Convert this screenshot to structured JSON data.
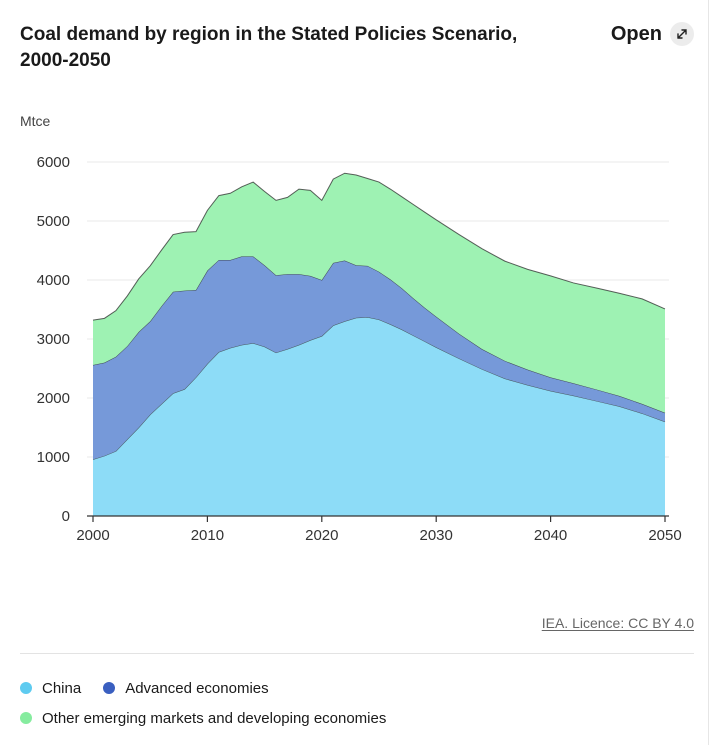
{
  "header": {
    "title": "Coal demand by region in the Stated Policies Scenario, 2000-2050",
    "open_label": "Open"
  },
  "source": {
    "label": "IEA. Licence: CC BY 4.0"
  },
  "chart_data": {
    "type": "area",
    "stacked": true,
    "title": "Coal demand by region in the Stated Policies Scenario, 2000-2050",
    "unit_label": "Mtce",
    "xlabel": "",
    "ylabel": "Mtce",
    "xlim": [
      2000,
      2050
    ],
    "ylim": [
      0,
      6000
    ],
    "x_ticks": [
      2000,
      2010,
      2020,
      2030,
      2040,
      2050
    ],
    "y_ticks": [
      0,
      1000,
      2000,
      3000,
      4000,
      5000,
      6000
    ],
    "grid": true,
    "legend_position": "bottom",
    "x": [
      2000,
      2001,
      2002,
      2003,
      2004,
      2005,
      2006,
      2007,
      2008,
      2009,
      2010,
      2011,
      2012,
      2013,
      2014,
      2015,
      2016,
      2017,
      2018,
      2019,
      2020,
      2021,
      2022,
      2023,
      2024,
      2025,
      2026,
      2027,
      2028,
      2029,
      2030,
      2032,
      2034,
      2036,
      2038,
      2040,
      2042,
      2044,
      2046,
      2048,
      2050
    ],
    "series": [
      {
        "name": "China",
        "color": "#8ddcf7",
        "values": [
          960,
          1020,
          1100,
          1300,
          1500,
          1720,
          1900,
          2080,
          2150,
          2350,
          2580,
          2780,
          2850,
          2900,
          2930,
          2870,
          2770,
          2830,
          2900,
          2980,
          3050,
          3230,
          3300,
          3360,
          3370,
          3330,
          3250,
          3160,
          3060,
          2960,
          2860,
          2670,
          2490,
          2330,
          2220,
          2120,
          2040,
          1950,
          1860,
          1740,
          1600
        ]
      },
      {
        "name": "Advanced economies",
        "color": "#7699d9",
        "values": [
          1600,
          1580,
          1600,
          1580,
          1620,
          1580,
          1660,
          1720,
          1670,
          1480,
          1580,
          1560,
          1490,
          1500,
          1470,
          1380,
          1310,
          1270,
          1200,
          1090,
          950,
          1060,
          1030,
          890,
          870,
          810,
          760,
          700,
          630,
          570,
          520,
          420,
          340,
          300,
          260,
          230,
          210,
          195,
          175,
          160,
          150
        ]
      },
      {
        "name": "Other emerging markets and developing economies",
        "color": "#9ef2b3",
        "values": [
          760,
          750,
          780,
          850,
          900,
          940,
          950,
          970,
          990,
          990,
          1020,
          1090,
          1130,
          1180,
          1260,
          1250,
          1270,
          1300,
          1440,
          1450,
          1350,
          1420,
          1480,
          1530,
          1480,
          1520,
          1530,
          1550,
          1590,
          1620,
          1640,
          1680,
          1700,
          1690,
          1700,
          1720,
          1700,
          1720,
          1740,
          1780,
          1760
        ]
      }
    ]
  },
  "legend": {
    "items": [
      {
        "label": "China",
        "color": "#5ecbf0"
      },
      {
        "label": "Advanced economies",
        "color": "#3a5fc0"
      },
      {
        "label": "Other emerging markets and developing economies",
        "color": "#86ec9f"
      }
    ]
  }
}
